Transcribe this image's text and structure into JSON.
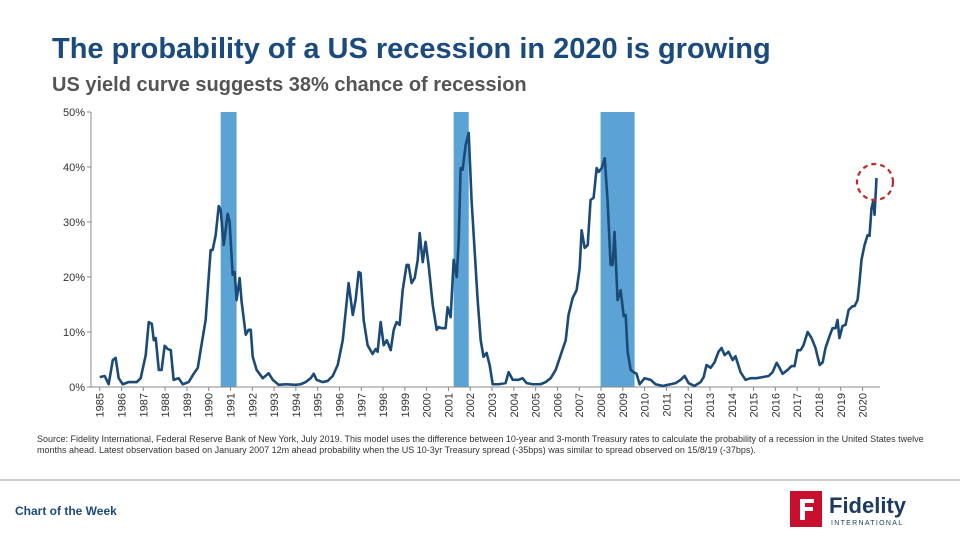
{
  "chart_data": {
    "type": "line",
    "title": "The probability of a US recession in 2020 is growing",
    "subtitle": "US yield curve suggests 38%  chance of recession",
    "note": "Source: Fidelity International,  Federal Reserve Bank of New York, July 2019. This model uses the difference between 10-year and 3-month Treasury rates to calculate the probability of a recession in the United States twelve months ahead. Latest observation based on January 2007 12m ahead probability when the US  10-3yr Treasury spread (-35bps) was similar to spread observed on 15/8/19 (-37bps).",
    "color": "#1c4a77",
    "recession_color": "#5aa3d4",
    "xlim": [
      1984.6,
      2020.8
    ],
    "ylim": [
      0,
      50
    ],
    "yticks": [
      {
        "value": 0,
        "label": "0%"
      },
      {
        "value": 10,
        "label": "10%"
      },
      {
        "value": 20,
        "label": "20%"
      },
      {
        "value": 30,
        "label": "30%"
      },
      {
        "value": 40,
        "label": "40%"
      },
      {
        "value": 50,
        "label": "50%"
      }
    ],
    "xticks": [
      1985,
      1986,
      1987,
      1988,
      1989,
      1990,
      1991,
      1992,
      1993,
      1994,
      1995,
      1996,
      1997,
      1998,
      1999,
      2000,
      2001,
      2002,
      2003,
      2004,
      2005,
      2006,
      2007,
      2008,
      2009,
      2010,
      2011,
      2012,
      2013,
      2014,
      2015,
      2016,
      2017,
      2018,
      2019,
      2020
    ],
    "recessions": [
      {
        "start": 1990.55,
        "end": 1991.28
      },
      {
        "start": 2001.24,
        "end": 2001.93
      },
      {
        "start": 2007.98,
        "end": 2009.54
      }
    ],
    "x": [
      1985.0,
      1985.23,
      1985.41,
      1985.6,
      1985.73,
      1985.87,
      1986.06,
      1986.33,
      1986.7,
      1986.88,
      1987.11,
      1987.25,
      1987.39,
      1987.48,
      1987.57,
      1987.71,
      1987.84,
      1987.98,
      1988.12,
      1988.26,
      1988.39,
      1988.62,
      1988.81,
      1989.08,
      1989.31,
      1989.5,
      1989.63,
      1989.86,
      1990.09,
      1990.18,
      1990.32,
      1990.46,
      1990.55,
      1990.69,
      1990.87,
      1990.96,
      1991.1,
      1991.19,
      1991.28,
      1991.42,
      1991.51,
      1991.7,
      1991.83,
      1991.93,
      1992.02,
      1992.2,
      1992.48,
      1992.75,
      1992.94,
      1993.21,
      1993.53,
      1993.99,
      1994.22,
      1994.45,
      1994.68,
      1994.82,
      1994.95,
      1995.23,
      1995.46,
      1995.69,
      1995.92,
      1996.15,
      1996.42,
      1996.61,
      1996.74,
      1996.88,
      1996.97,
      1997.11,
      1997.29,
      1997.52,
      1997.66,
      1997.75,
      1997.89,
      1998.03,
      1998.17,
      1998.35,
      1998.49,
      1998.62,
      1998.76,
      1998.9,
      1999.08,
      1999.17,
      1999.31,
      1999.45,
      1999.59,
      1999.68,
      1999.82,
      1999.95,
      2000.09,
      2000.28,
      2000.46,
      2000.55,
      2000.69,
      2000.87,
      2000.96,
      2001.1,
      2001.24,
      2001.38,
      2001.47,
      2001.56,
      2001.65,
      2001.79,
      2001.93,
      2002.06,
      2002.2,
      2002.34,
      2002.48,
      2002.61,
      2002.75,
      2002.89,
      2003.03,
      2003.3,
      2003.62,
      2003.76,
      2003.95,
      2004.22,
      2004.4,
      2004.59,
      2004.86,
      2005.23,
      2005.46,
      2005.69,
      2005.92,
      2006.15,
      2006.38,
      2006.51,
      2006.7,
      2006.88,
      2007.02,
      2007.11,
      2007.25,
      2007.39,
      2007.52,
      2007.66,
      2007.8,
      2007.89,
      2008.03,
      2008.17,
      2008.3,
      2008.44,
      2008.53,
      2008.62,
      2008.76,
      2008.9,
      2009.04,
      2009.13,
      2009.22,
      2009.36,
      2009.5,
      2009.63,
      2009.77,
      2010.0,
      2010.28,
      2010.5,
      2010.83,
      2011.19,
      2011.42,
      2011.65,
      2011.84,
      2012.02,
      2012.29,
      2012.57,
      2012.71,
      2012.84,
      2013.03,
      2013.21,
      2013.39,
      2013.53,
      2013.67,
      2013.85,
      2014.04,
      2014.17,
      2014.4,
      2014.63,
      2014.86,
      2015.14,
      2015.41,
      2015.69,
      2015.87,
      2016.06,
      2016.19,
      2016.33,
      2016.56,
      2016.74,
      2016.88,
      2017.02,
      2017.16,
      2017.29,
      2017.48,
      2017.66,
      2017.84,
      2018.03,
      2018.17,
      2018.3,
      2018.49,
      2018.62,
      2018.76,
      2018.85,
      2018.94,
      2019.08,
      2019.22,
      2019.36,
      2019.54,
      2019.63,
      2019.77,
      2019.86,
      2019.95,
      2020.09,
      2020.23,
      2020.32,
      2020.41,
      2020.5,
      2020.55,
      2020.64
    ],
    "values": [
      1.8,
      2.0,
      0.5,
      4.9,
      5.3,
      1.6,
      0.5,
      0.9,
      0.9,
      1.6,
      5.8,
      11.8,
      11.5,
      8.5,
      8.9,
      3.1,
      3.1,
      7.5,
      6.9,
      6.7,
      1.3,
      1.6,
      0.5,
      0.9,
      2.4,
      3.5,
      6.7,
      12.2,
      24.9,
      24.9,
      27.6,
      32.9,
      32.2,
      25.8,
      31.5,
      30.0,
      20.4,
      20.9,
      15.8,
      19.8,
      15.5,
      9.5,
      10.4,
      10.4,
      5.5,
      3.1,
      1.6,
      2.5,
      1.3,
      0.4,
      0.5,
      0.4,
      0.5,
      0.9,
      1.6,
      2.4,
      1.3,
      0.9,
      1.1,
      2.0,
      4.0,
      8.5,
      18.9,
      13.1,
      15.8,
      20.9,
      20.7,
      12.2,
      7.6,
      6.0,
      6.9,
      6.4,
      11.8,
      7.6,
      8.5,
      6.7,
      10.4,
      11.8,
      11.3,
      17.6,
      22.2,
      22.2,
      18.9,
      19.8,
      23.1,
      28.0,
      22.7,
      26.4,
      22.2,
      14.9,
      10.4,
      10.9,
      10.7,
      10.7,
      14.5,
      12.7,
      23.1,
      20.0,
      26.7,
      39.8,
      39.5,
      44.0,
      46.2,
      34.0,
      24.9,
      15.8,
      8.5,
      5.5,
      6.2,
      4.0,
      0.5,
      0.5,
      0.7,
      2.7,
      1.3,
      1.3,
      1.6,
      0.7,
      0.5,
      0.5,
      0.9,
      1.6,
      3.1,
      5.8,
      8.5,
      13.1,
      16.2,
      17.6,
      21.6,
      28.5,
      25.3,
      25.8,
      34.0,
      34.4,
      39.8,
      39.1,
      39.8,
      41.6,
      34.0,
      22.2,
      22.2,
      28.2,
      15.8,
      17.6,
      12.9,
      13.1,
      6.4,
      3.1,
      2.7,
      2.4,
      0.5,
      1.6,
      1.3,
      0.5,
      0.2,
      0.5,
      0.7,
      1.3,
      2.0,
      0.7,
      0.2,
      0.9,
      1.8,
      4.0,
      3.5,
      4.5,
      6.4,
      7.1,
      5.8,
      6.4,
      4.9,
      5.6,
      2.7,
      1.3,
      1.6,
      1.6,
      1.8,
      2.0,
      2.7,
      4.4,
      3.5,
      2.4,
      3.1,
      3.8,
      3.8,
      6.7,
      6.7,
      7.6,
      10.0,
      8.9,
      7.1,
      4.0,
      4.5,
      7.1,
      9.3,
      10.7,
      10.7,
      12.2,
      8.9,
      11.1,
      11.3,
      14.0,
      14.7,
      14.7,
      15.8,
      19.1,
      23.1,
      25.8,
      27.6,
      27.5,
      32.5,
      34.0,
      31.3,
      38
    ]
  },
  "footer": {
    "label": "Chart of the Week"
  },
  "logo": {
    "name": "Fidelity",
    "tagline": "INTERNATIONAL"
  }
}
